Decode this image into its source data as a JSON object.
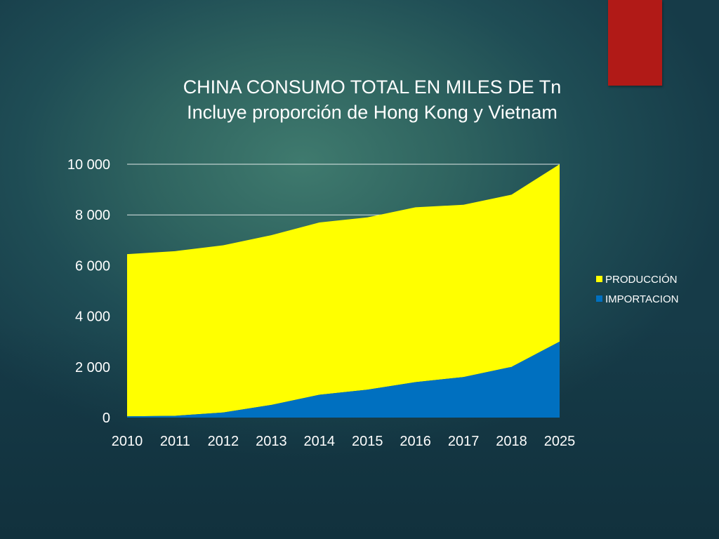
{
  "colors": {
    "produccion": "#ffff00",
    "importacion": "#0070c0",
    "gridline": "#ffffff",
    "accent_bar": "#b11a17"
  },
  "chart_data": {
    "type": "area",
    "stacked": true,
    "title": "CHINA CONSUMO TOTAL EN MILES DE Tn",
    "subtitle": "Incluye proporción de Hong Kong y Vietnam",
    "xlabel": "",
    "ylabel": "",
    "categories": [
      "2010",
      "2011",
      "2012",
      "2013",
      "2014",
      "2015",
      "2016",
      "2017",
      "2018",
      "2025"
    ],
    "ylim": [
      0,
      10000
    ],
    "yticks": [
      0,
      2000,
      4000,
      6000,
      8000,
      10000
    ],
    "ytick_labels": [
      "0",
      "2 000",
      "4 000",
      "6 000",
      "8 000",
      "10 000"
    ],
    "grid": "horizontal",
    "legend": "right",
    "series": [
      {
        "name": "PRODUCCIÓN",
        "values": [
          6400,
          6500,
          6600,
          6700,
          6800,
          6800,
          6900,
          6800,
          6800,
          7000
        ]
      },
      {
        "name": "IMPORTACION",
        "values": [
          50,
          70,
          200,
          500,
          900,
          1100,
          1400,
          1600,
          2000,
          3000
        ]
      }
    ]
  }
}
